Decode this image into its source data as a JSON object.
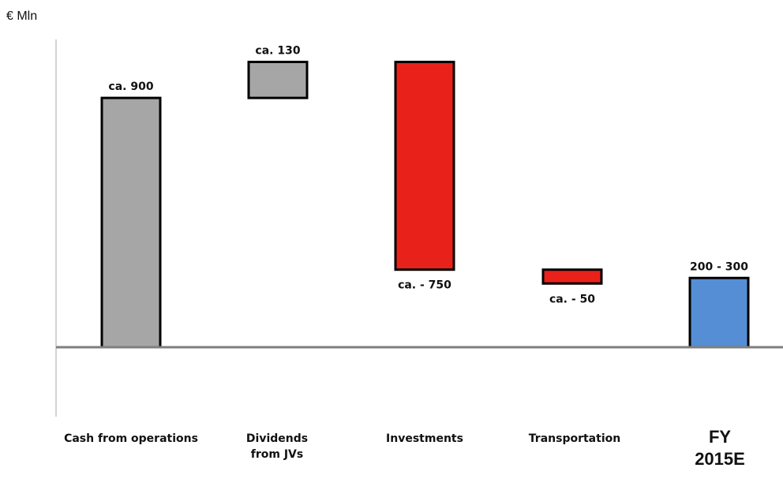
{
  "chart_data": {
    "type": "bar",
    "subtype": "waterfall",
    "unit_label": "€ Mln",
    "categories": [
      "Cash from operations",
      "Dividends from JVs",
      "Investments",
      "Transportation",
      "FY 2015E"
    ],
    "steps": [
      {
        "category": "Cash from operations",
        "start": 0,
        "end": 900,
        "value": 900,
        "label": "ca. 900",
        "kind": "increase",
        "color": "#A6A6A6"
      },
      {
        "category": "Dividends from JVs",
        "start": 900,
        "end": 1030,
        "value": 130,
        "label": "ca. 130",
        "kind": "increase",
        "color": "#A6A6A6"
      },
      {
        "category": "Investments",
        "start": 1030,
        "end": 280,
        "value": -750,
        "label": "ca. - 750",
        "kind": "decrease",
        "color": "#E8221A"
      },
      {
        "category": "Transportation",
        "start": 280,
        "end": 230,
        "value": -50,
        "label": "ca. - 50",
        "kind": "decrease",
        "color": "#E8221A"
      },
      {
        "category": "FY 2015E",
        "start": 0,
        "end": 250,
        "value": 250,
        "range": [
          200,
          300
        ],
        "label": "200 - 300",
        "kind": "total",
        "color": "#558ED5"
      }
    ],
    "ylim": [
      -250,
      1100
    ],
    "grid": false,
    "legend": "none",
    "axis_color": "#7F7F7F",
    "bar_border_color": "#000000"
  },
  "category_labels": {
    "c0": "Cash from operations",
    "c1_line1": "Dividends",
    "c1_line2": "from JVs",
    "c2": "Investments",
    "c3": "Transportation",
    "c4_line1": "FY",
    "c4_line2": "2015E"
  }
}
